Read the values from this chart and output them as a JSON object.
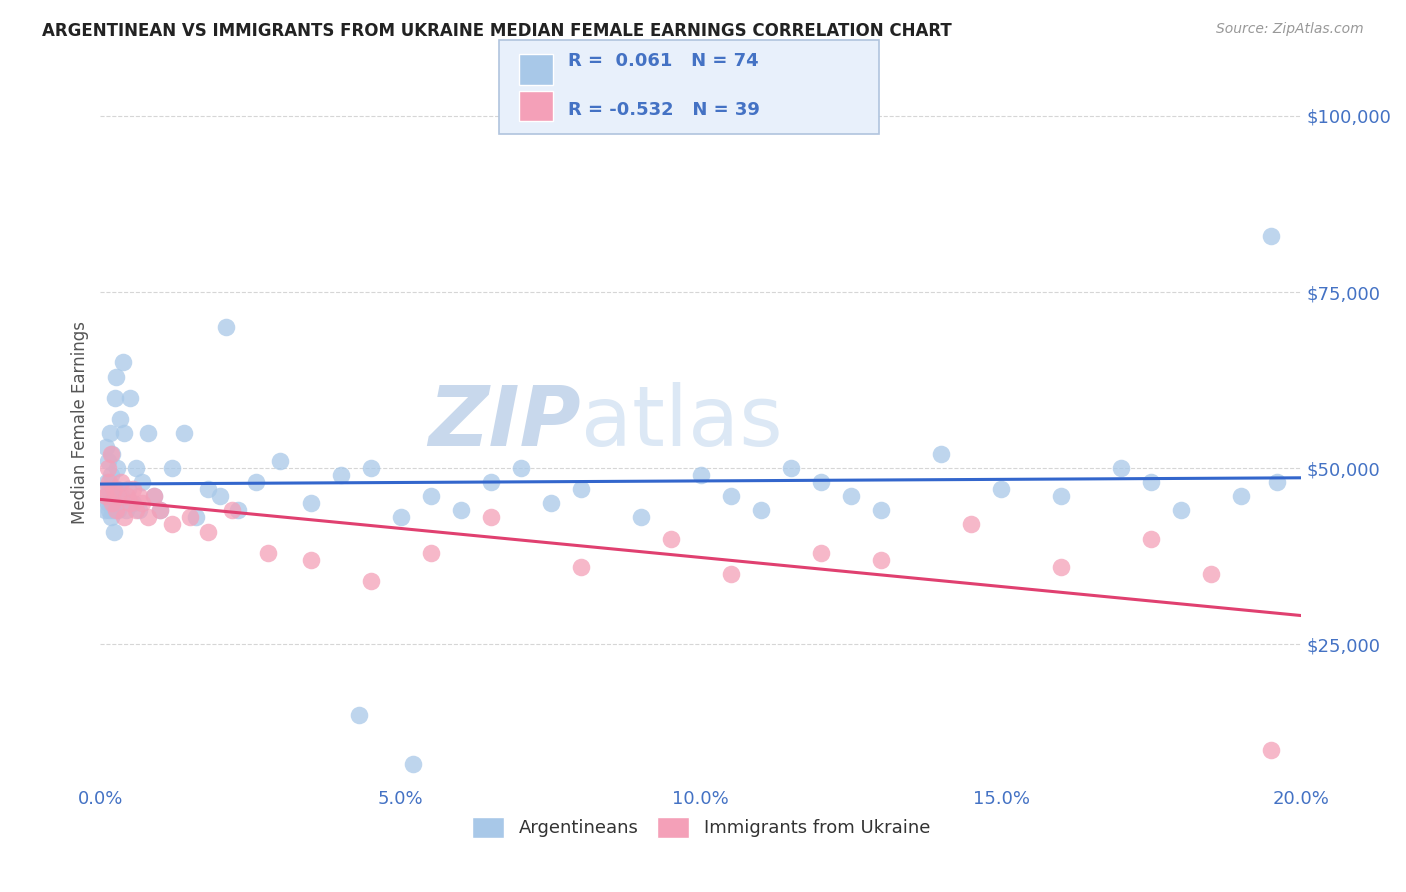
{
  "title": "ARGENTINEAN VS IMMIGRANTS FROM UKRAINE MEDIAN FEMALE EARNINGS CORRELATION CHART",
  "source": "Source: ZipAtlas.com",
  "ylabel": "Median Female Earnings",
  "xlim": [
    0.0,
    20.0
  ],
  "ylim": [
    5000,
    108000
  ],
  "ytick_vals": [
    25000,
    50000,
    75000,
    100000
  ],
  "ytick_labels": [
    "$25,000",
    "$50,000",
    "$75,000",
    "$100,000"
  ],
  "xtick_vals": [
    0.0,
    5.0,
    10.0,
    15.0,
    20.0
  ],
  "xtick_labels": [
    "0.0%",
    "5.0%",
    "10.0%",
    "15.0%",
    "20.0%"
  ],
  "R_arg": 0.061,
  "N_arg": 74,
  "R_ukr": -0.532,
  "N_ukr": 39,
  "blue_dot_color": "#a8c8e8",
  "blue_line_color": "#3366cc",
  "pink_dot_color": "#f4a0b8",
  "pink_line_color": "#e04070",
  "grid_color": "#cccccc",
  "title_color": "#222222",
  "axis_color": "#4472c4",
  "watermark_color": "#dce8f5",
  "legend_bg": "#e8f0fb",
  "legend_edge": "#b0c4de",
  "text_label_color": "#333333",
  "arg_x": [
    0.08,
    0.09,
    0.1,
    0.11,
    0.12,
    0.13,
    0.14,
    0.15,
    0.16,
    0.17,
    0.18,
    0.19,
    0.2,
    0.21,
    0.22,
    0.23,
    0.24,
    0.25,
    0.26,
    0.27,
    0.28,
    0.3,
    0.32,
    0.35,
    0.38,
    0.4,
    0.43,
    0.46,
    0.5,
    0.55,
    0.6,
    0.65,
    0.7,
    0.8,
    0.9,
    1.0,
    1.2,
    1.4,
    1.6,
    1.8,
    2.0,
    2.3,
    2.6,
    3.0,
    3.5,
    4.0,
    4.5,
    5.0,
    5.5,
    6.0,
    6.5,
    7.0,
    7.5,
    8.0,
    9.0,
    10.0,
    10.5,
    11.0,
    11.5,
    12.0,
    12.5,
    13.0,
    14.0,
    15.0,
    16.0,
    17.0,
    17.5,
    18.0,
    19.0,
    19.5,
    19.6,
    4.3,
    5.2,
    2.1
  ],
  "arg_y": [
    44000,
    53000,
    46000,
    48000,
    51000,
    45000,
    47000,
    44000,
    55000,
    49000,
    43000,
    46000,
    52000,
    44000,
    47000,
    41000,
    60000,
    45000,
    63000,
    50000,
    47000,
    44000,
    57000,
    46000,
    65000,
    55000,
    44000,
    47000,
    60000,
    45000,
    50000,
    44000,
    48000,
    55000,
    46000,
    44000,
    50000,
    55000,
    43000,
    47000,
    46000,
    44000,
    48000,
    51000,
    45000,
    49000,
    50000,
    43000,
    46000,
    44000,
    48000,
    50000,
    45000,
    47000,
    43000,
    49000,
    46000,
    44000,
    50000,
    48000,
    46000,
    44000,
    52000,
    47000,
    46000,
    50000,
    48000,
    44000,
    46000,
    83000,
    48000,
    15000,
    8000,
    70000
  ],
  "ukr_x": [
    0.08,
    0.1,
    0.12,
    0.15,
    0.18,
    0.2,
    0.23,
    0.26,
    0.3,
    0.35,
    0.4,
    0.45,
    0.5,
    0.55,
    0.6,
    0.65,
    0.7,
    0.8,
    0.9,
    1.0,
    1.2,
    1.5,
    1.8,
    2.2,
    2.8,
    3.5,
    4.5,
    5.5,
    6.5,
    8.0,
    9.5,
    10.5,
    12.0,
    13.0,
    14.5,
    16.0,
    17.5,
    18.5,
    19.5
  ],
  "ukr_y": [
    47000,
    46000,
    50000,
    48000,
    52000,
    45000,
    47000,
    44000,
    46000,
    48000,
    43000,
    46000,
    45000,
    47000,
    44000,
    46000,
    45000,
    43000,
    46000,
    44000,
    42000,
    43000,
    41000,
    44000,
    38000,
    37000,
    34000,
    38000,
    43000,
    36000,
    40000,
    35000,
    38000,
    37000,
    42000,
    36000,
    40000,
    35000,
    10000
  ]
}
